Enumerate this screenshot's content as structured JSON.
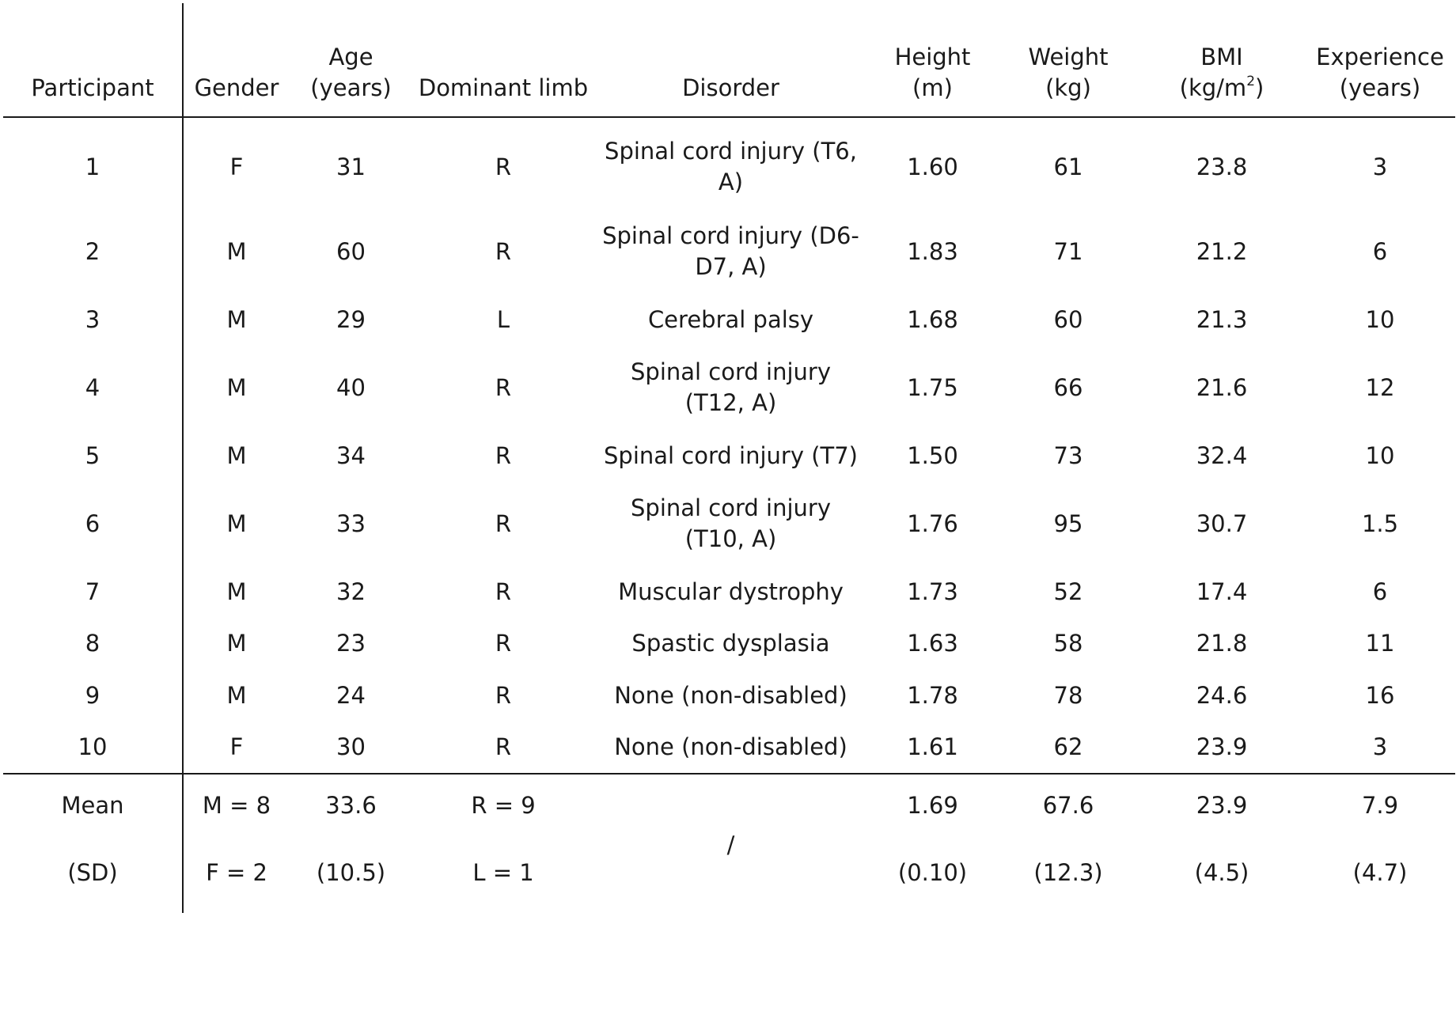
{
  "table": {
    "headers": [
      {
        "line1": "",
        "line2": "Participant"
      },
      {
        "line1": "",
        "line2": "Gender"
      },
      {
        "line1": "Age",
        "line2": "(years)"
      },
      {
        "line1": "",
        "line2": "Dominant limb"
      },
      {
        "line1": "",
        "line2": "Disorder"
      },
      {
        "line1": "Height",
        "line2": "(m)"
      },
      {
        "line1": "Weight",
        "line2": "(kg)"
      },
      {
        "line1": "BMI",
        "line2": "(kg/m",
        "sup": "2",
        "line2_end": ")"
      },
      {
        "line1": "Experience",
        "line2": "(years)"
      }
    ],
    "rows": [
      {
        "participant": "1",
        "gender": "F",
        "age": "31",
        "limb": "R",
        "disorder": "Spinal cord injury (T6, A)",
        "height": "1.60",
        "weight": "61",
        "bmi": "23.8",
        "experience": "3"
      },
      {
        "participant": "2",
        "gender": "M",
        "age": "60",
        "limb": "R",
        "disorder": "Spinal cord injury (D6-D7, A)",
        "height": "1.83",
        "weight": "71",
        "bmi": "21.2",
        "experience": "6"
      },
      {
        "participant": "3",
        "gender": "M",
        "age": "29",
        "limb": "L",
        "disorder": "Cerebral palsy",
        "height": "1.68",
        "weight": "60",
        "bmi": "21.3",
        "experience": "10"
      },
      {
        "participant": "4",
        "gender": "M",
        "age": "40",
        "limb": "R",
        "disorder": "Spinal cord injury (T12, A)",
        "height": "1.75",
        "weight": "66",
        "bmi": "21.6",
        "experience": "12"
      },
      {
        "participant": "5",
        "gender": "M",
        "age": "34",
        "limb": "R",
        "disorder": "Spinal cord injury (T7)",
        "height": "1.50",
        "weight": "73",
        "bmi": "32.4",
        "experience": "10"
      },
      {
        "participant": "6",
        "gender": "M",
        "age": "33",
        "limb": "R",
        "disorder": "Spinal cord injury (T10, A)",
        "height": "1.76",
        "weight": "95",
        "bmi": "30.7",
        "experience": "1.5"
      },
      {
        "participant": "7",
        "gender": "M",
        "age": "32",
        "limb": "R",
        "disorder": "Muscular dystrophy",
        "height": "1.73",
        "weight": "52",
        "bmi": "17.4",
        "experience": "6"
      },
      {
        "participant": "8",
        "gender": "M",
        "age": "23",
        "limb": "R",
        "disorder": "Spastic dysplasia",
        "height": "1.63",
        "weight": "58",
        "bmi": "21.8",
        "experience": "11"
      },
      {
        "participant": "9",
        "gender": "M",
        "age": "24",
        "limb": "R",
        "disorder": "None (non-disabled)",
        "height": "1.78",
        "weight": "78",
        "bmi": "24.6",
        "experience": "16"
      },
      {
        "participant": "10",
        "gender": "F",
        "age": "30",
        "limb": "R",
        "disorder": "None (non-disabled)",
        "height": "1.61",
        "weight": "62",
        "bmi": "23.9",
        "experience": "3"
      }
    ],
    "summary": {
      "mean": {
        "label": "Mean",
        "gender": "M = 8",
        "age": "33.6",
        "limb": "R = 9",
        "disorder": "/",
        "height": "1.69",
        "weight": "67.6",
        "bmi": "23.9",
        "experience": "7.9"
      },
      "sd": {
        "label": "(SD)",
        "gender": "F = 2",
        "age": "(10.5)",
        "limb": "L = 1",
        "height": "(0.10)",
        "weight": "(12.3)",
        "bmi": "(4.5)",
        "experience": "(4.7)"
      }
    }
  }
}
